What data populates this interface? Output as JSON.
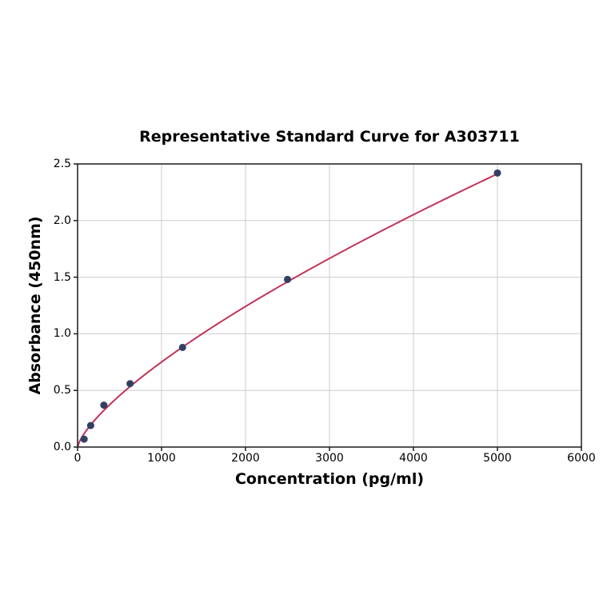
{
  "chart_data": {
    "type": "scatter",
    "title": "Representative Standard Curve for A303711",
    "xlabel": "Concentration (pg/ml)",
    "ylabel": "Absorbance (450nm)",
    "xlim": [
      0,
      6000
    ],
    "ylim": [
      0,
      2.5
    ],
    "x_ticks": [
      0,
      1000,
      2000,
      3000,
      4000,
      5000,
      6000
    ],
    "y_ticks": [
      0,
      0.5,
      1,
      1.5,
      2,
      2.5
    ],
    "y_tick_decimals": 1,
    "grid": true,
    "legend": "none",
    "points": [
      {
        "x": 78,
        "y": 0.07
      },
      {
        "x": 156,
        "y": 0.19
      },
      {
        "x": 313,
        "y": 0.37
      },
      {
        "x": 625,
        "y": 0.56
      },
      {
        "x": 1250,
        "y": 0.88
      },
      {
        "x": 2500,
        "y": 1.48
      },
      {
        "x": 5000,
        "y": 2.42
      }
    ],
    "fit_curve": {
      "type": "power",
      "a": 0.00502,
      "b": 0.725,
      "x_start": 0,
      "x_end": 5000
    },
    "colors": {
      "marker": "#324064",
      "curve": "#c13458",
      "grid": "#cccccc",
      "axis": "#1c1c1c",
      "text": "#000000",
      "background": "#ffffff"
    }
  }
}
